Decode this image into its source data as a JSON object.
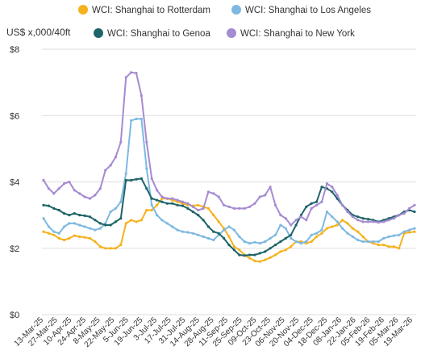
{
  "chart_data": {
    "type": "line",
    "ylabel": "US$ x,000/40ft",
    "ylim": [
      0,
      8
    ],
    "yticks": [
      {
        "value": 0,
        "label": "$0"
      },
      {
        "value": 2,
        "label": "$2"
      },
      {
        "value": 4,
        "label": "$4"
      },
      {
        "value": 6,
        "label": "$6"
      },
      {
        "value": 8,
        "label": "$8"
      }
    ],
    "x_tick_labels": [
      "13-Mar-25",
      "27-Mar-25",
      "10-Apr-25",
      "24-Apr-25",
      "8-May-25",
      "22-May-25",
      "5-Jun-25",
      "19-Jun-25",
      "3-Jul-25",
      "17-Jul-25",
      "31-Jul-25",
      "14-Aug-25",
      "28-Aug-25",
      "11-Sep-25",
      "25-Sep-25",
      "09-Oct-25",
      "23-Oct-25",
      "06-Nov-25",
      "20-Nov-25",
      "04-Dec-25",
      "18-Dec-25",
      "08-Jan-26",
      "22-Jan-26",
      "05-Feb-26",
      "19-Feb-26",
      "05-Mar-26",
      "19-Mar-26"
    ],
    "grid": "horizontal",
    "legend_position": "top",
    "series": [
      {
        "name": "WCI: Shanghai to Rotterdam",
        "color": "#F5B21D",
        "values": [
          2.5,
          2.45,
          2.4,
          2.3,
          2.25,
          2.3,
          2.38,
          2.35,
          2.33,
          2.3,
          2.2,
          2.05,
          2.0,
          2.0,
          2.0,
          2.1,
          2.75,
          2.85,
          2.8,
          2.85,
          3.15,
          3.15,
          3.3,
          3.5,
          3.5,
          3.45,
          3.4,
          3.35,
          3.3,
          3.28,
          3.3,
          3.25,
          3.2,
          3.0,
          2.8,
          2.6,
          2.35,
          2.05,
          1.95,
          1.8,
          1.7,
          1.62,
          1.6,
          1.65,
          1.72,
          1.8,
          1.9,
          1.95,
          2.05,
          2.2,
          2.2,
          2.15,
          2.2,
          2.35,
          2.45,
          2.6,
          2.65,
          2.7,
          2.85,
          2.75,
          2.6,
          2.5,
          2.35,
          2.2,
          2.15,
          2.1,
          2.1,
          2.05,
          2.05,
          2.0,
          2.45,
          2.48,
          2.5
        ]
      },
      {
        "name": "WCI: Shanghai to Los Angeles",
        "color": "#7DB9E0",
        "values": [
          2.9,
          2.65,
          2.5,
          2.45,
          2.65,
          2.75,
          2.75,
          2.7,
          2.65,
          2.6,
          2.55,
          2.6,
          2.75,
          3.1,
          3.2,
          3.4,
          4.25,
          5.85,
          5.9,
          5.9,
          4.4,
          3.3,
          3.0,
          2.85,
          2.75,
          2.65,
          2.55,
          2.5,
          2.48,
          2.45,
          2.4,
          2.35,
          2.3,
          2.25,
          2.4,
          2.55,
          2.65,
          2.55,
          2.35,
          2.2,
          2.15,
          2.18,
          2.15,
          2.2,
          2.3,
          2.4,
          2.7,
          2.6,
          2.3,
          2.2,
          2.15,
          2.2,
          2.4,
          2.45,
          2.55,
          3.1,
          2.95,
          2.8,
          2.6,
          2.45,
          2.35,
          2.25,
          2.2,
          2.2,
          2.2,
          2.2,
          2.3,
          2.35,
          2.38,
          2.4,
          2.5,
          2.55,
          2.6
        ]
      },
      {
        "name": "WCI: Shanghai to Genoa",
        "color": "#1E6468",
        "values": [
          3.3,
          3.28,
          3.2,
          3.15,
          3.05,
          3.0,
          3.05,
          3.0,
          2.98,
          2.95,
          2.85,
          2.75,
          2.7,
          2.7,
          2.8,
          2.9,
          4.05,
          4.05,
          4.08,
          4.1,
          3.8,
          3.5,
          3.45,
          3.4,
          3.35,
          3.35,
          3.3,
          3.28,
          3.2,
          3.1,
          3.0,
          2.85,
          2.65,
          2.5,
          2.45,
          2.3,
          2.1,
          1.95,
          1.8,
          1.78,
          1.8,
          1.8,
          1.85,
          1.9,
          2.0,
          2.1,
          2.2,
          2.3,
          2.4,
          2.7,
          3.0,
          3.25,
          3.35,
          3.4,
          3.85,
          3.8,
          3.7,
          3.5,
          3.3,
          3.15,
          3.0,
          2.95,
          2.9,
          2.88,
          2.85,
          2.8,
          2.85,
          2.9,
          2.95,
          3.0,
          3.1,
          3.15,
          3.1
        ]
      },
      {
        "name": "WCI: Shanghai to New York",
        "color": "#A58BD2",
        "values": [
          4.05,
          3.8,
          3.65,
          3.8,
          3.95,
          4.0,
          3.75,
          3.65,
          3.55,
          3.5,
          3.6,
          3.8,
          4.35,
          4.5,
          4.75,
          5.2,
          7.15,
          7.3,
          7.28,
          6.6,
          5.2,
          4.1,
          3.75,
          3.55,
          3.5,
          3.5,
          3.45,
          3.4,
          3.35,
          3.25,
          3.15,
          3.2,
          3.7,
          3.65,
          3.55,
          3.3,
          3.25,
          3.2,
          3.2,
          3.2,
          3.25,
          3.35,
          3.55,
          3.6,
          3.85,
          3.3,
          3.0,
          2.9,
          2.7,
          2.85,
          2.95,
          2.85,
          3.2,
          3.3,
          3.4,
          3.95,
          3.85,
          3.6,
          3.3,
          3.1,
          2.95,
          2.85,
          2.8,
          2.8,
          2.8,
          2.78,
          2.8,
          2.85,
          2.9,
          3.0,
          3.05,
          3.2,
          3.3
        ]
      }
    ]
  }
}
